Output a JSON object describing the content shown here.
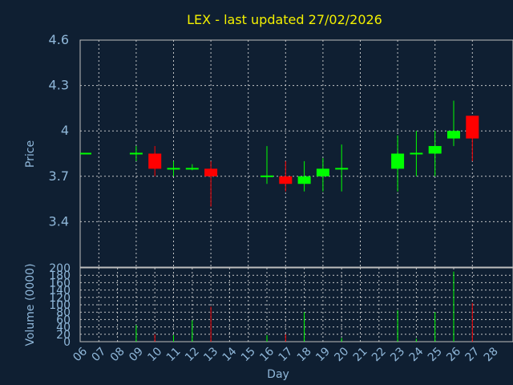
{
  "colors": {
    "background": "#0f1f32",
    "title": "#f3f000",
    "axis_text": "#8fb7d9",
    "up": "#00ff00",
    "down": "#ff0000",
    "flat": "#00ff00"
  },
  "chart_data": [
    {
      "type": "candlestick",
      "title": "LEX - last updated 27/02/2026",
      "xlabel": "",
      "ylabel": "Price",
      "ylim": [
        3.1,
        4.6
      ],
      "yticks": [
        3.4,
        3.7,
        4,
        4.3,
        4.6
      ],
      "ytick_labels": [
        "3.4",
        "3.7",
        "4",
        "4.3",
        "4.6"
      ],
      "grid": true,
      "x_ticks": [
        "06",
        "07",
        "08",
        "09",
        "10",
        "11",
        "12",
        "13",
        "14",
        "15",
        "16",
        "17",
        "18",
        "19",
        "20",
        "21",
        "22",
        "23",
        "24",
        "25",
        "26",
        "27",
        "28"
      ],
      "series": [
        {
          "x": "06",
          "open": 3.85,
          "high": 3.85,
          "low": 3.85,
          "close": 3.85
        },
        {
          "x": "09",
          "open": 3.85,
          "high": 3.9,
          "low": 3.8,
          "close": 3.85
        },
        {
          "x": "10",
          "open": 3.85,
          "high": 3.9,
          "low": 3.7,
          "close": 3.75
        },
        {
          "x": "11",
          "open": 3.75,
          "high": 3.8,
          "low": 3.7,
          "close": 3.75
        },
        {
          "x": "12",
          "open": 3.75,
          "high": 3.78,
          "low": 3.74,
          "close": 3.75
        },
        {
          "x": "13",
          "open": 3.75,
          "high": 3.8,
          "low": 3.5,
          "close": 3.7
        },
        {
          "x": "16",
          "open": 3.7,
          "high": 3.9,
          "low": 3.65,
          "close": 3.7
        },
        {
          "x": "17",
          "open": 3.7,
          "high": 3.8,
          "low": 3.6,
          "close": 3.65
        },
        {
          "x": "18",
          "open": 3.65,
          "high": 3.8,
          "low": 3.6,
          "close": 3.7
        },
        {
          "x": "19",
          "open": 3.7,
          "high": 3.82,
          "low": 3.6,
          "close": 3.75
        },
        {
          "x": "20",
          "open": 3.75,
          "high": 3.91,
          "low": 3.6,
          "close": 3.75
        },
        {
          "x": "23",
          "open": 3.75,
          "high": 3.97,
          "low": 3.6,
          "close": 3.85
        },
        {
          "x": "24",
          "open": 3.85,
          "high": 4.0,
          "low": 3.7,
          "close": 3.85
        },
        {
          "x": "25",
          "open": 3.85,
          "high": 4.0,
          "low": 3.7,
          "close": 3.9
        },
        {
          "x": "26",
          "open": 3.95,
          "high": 4.2,
          "low": 3.9,
          "close": 4.0
        },
        {
          "x": "27",
          "open": 4.1,
          "high": 4.1,
          "low": 3.8,
          "close": 3.95
        }
      ]
    },
    {
      "type": "bar",
      "xlabel": "Day",
      "ylabel": "Volume (0000)",
      "ylim": [
        0,
        200
      ],
      "yticks": [
        0,
        20,
        40,
        60,
        80,
        100,
        120,
        140,
        160,
        180,
        200
      ],
      "ytick_labels": [
        "0",
        "20",
        "40",
        "60",
        "80",
        "100",
        "120",
        "140",
        "160",
        "180",
        "200"
      ],
      "grid": true,
      "categories": [
        "09",
        "10",
        "11",
        "12",
        "13",
        "16",
        "17",
        "18",
        "20",
        "23",
        "24",
        "25",
        "26",
        "27"
      ],
      "values": [
        45,
        20,
        18,
        58,
        95,
        18,
        20,
        80,
        10,
        85,
        8,
        80,
        190,
        105
      ],
      "direction": [
        "up",
        "down",
        "up",
        "up",
        "down",
        "up",
        "down",
        "up",
        "up",
        "up",
        "up",
        "up",
        "up",
        "down"
      ]
    }
  ]
}
